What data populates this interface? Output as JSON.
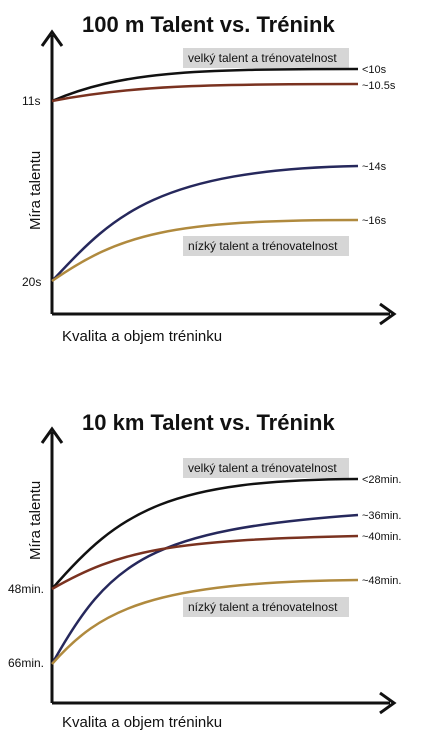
{
  "chart_data": [
    {
      "type": "line",
      "title": "100 m Talent vs. Trénink",
      "xlabel": "Kvalita a objem tréninku",
      "ylabel": "Míra talentu",
      "y_ticks": [
        "11s",
        "20s"
      ],
      "annotations": [
        "velký talent a trénovatelnost",
        "nízký talent a trénovatelnost"
      ],
      "series": [
        {
          "name": "10s",
          "color": "#111111",
          "start": 11,
          "end": 10
        },
        {
          "name": "10.5s",
          "color": "#7a3220",
          "start": 11,
          "end": 10.5
        },
        {
          "name": "14s",
          "color": "#26285c",
          "start": 20,
          "end": 14
        },
        {
          "name": "16s",
          "color": "#b08a3e",
          "start": 20,
          "end": 16
        }
      ],
      "end_labels": [
        "<10s",
        "~10.5s",
        "~14s",
        "~16s"
      ]
    },
    {
      "type": "line",
      "title": "10 km Talent vs. Trénink",
      "xlabel": "Kvalita a objem tréninku",
      "ylabel": "Míra talentu",
      "y_ticks": [
        "48min.",
        "66min."
      ],
      "annotations": [
        "velký talent a trénovatelnost",
        "nízký talent a trénovatelnost"
      ],
      "series": [
        {
          "name": "28min.",
          "color": "#111111",
          "start": 48,
          "end": 28
        },
        {
          "name": "36min.",
          "color": "#26285c",
          "start": 66,
          "end": 36
        },
        {
          "name": "40min.",
          "color": "#7a3220",
          "start": 48,
          "end": 40
        },
        {
          "name": "48min.",
          "color": "#b08a3e",
          "start": 66,
          "end": 48
        }
      ],
      "end_labels": [
        "<28min.",
        "~36min.",
        "~40min.",
        "~48min."
      ]
    }
  ]
}
